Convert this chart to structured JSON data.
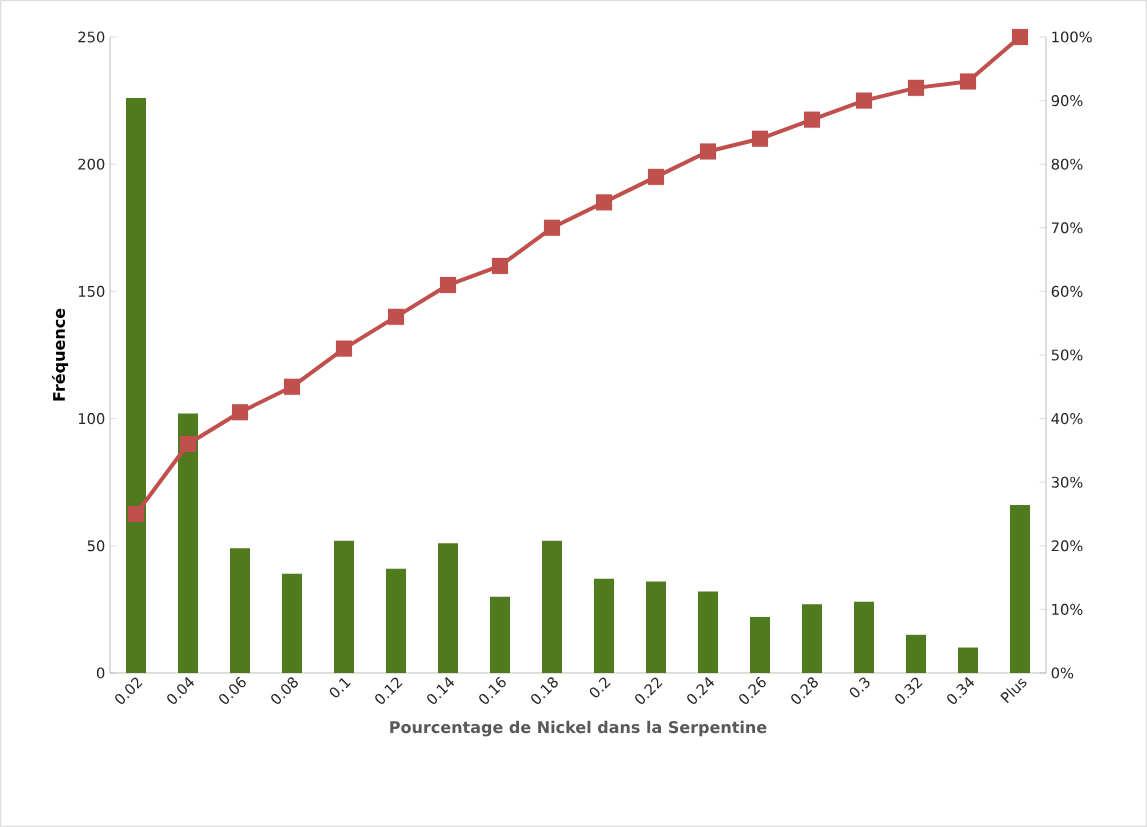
{
  "chart_data": {
    "type": "bar",
    "xlabel": "Pourcentage de Nickel dans la Serpentine",
    "ylabel": "Fréquence",
    "categories": [
      "0.02",
      "0.04",
      "0.06",
      "0.08",
      "0.1",
      "0.12",
      "0.14",
      "0.16",
      "0.18",
      "0.2",
      "0.22",
      "0.24",
      "0.26",
      "0.28",
      "0.3",
      "0.32",
      "0.34",
      "Plus"
    ],
    "series": [
      {
        "color": "#4f7a1e",
        "values": [
          226,
          102,
          49,
          39,
          52,
          41,
          51,
          30,
          52,
          37,
          36,
          32,
          22,
          27,
          28,
          15,
          10,
          66
        ]
      },
      {
        "type": "line",
        "axis": "y2",
        "color": "#c0504d",
        "marker": "square",
        "values": [
          25,
          36,
          41,
          45,
          51,
          56,
          61,
          64,
          70,
          74,
          78,
          82,
          84,
          87,
          90,
          92,
          93,
          100
        ]
      }
    ],
    "ylim": [
      0,
      250
    ],
    "yticks": [
      0,
      50,
      100,
      150,
      200,
      250
    ],
    "y2lim": [
      0,
      100
    ],
    "y2ticks": [
      {
        "value": 0,
        "label": "0%"
      },
      {
        "value": 10,
        "label": "10%"
      },
      {
        "value": 20,
        "label": "20%"
      },
      {
        "value": 30,
        "label": "30%"
      },
      {
        "value": 40,
        "label": "40%"
      },
      {
        "value": 50,
        "label": "50%"
      },
      {
        "value": 60,
        "label": "60%"
      },
      {
        "value": 70,
        "label": "70%"
      },
      {
        "value": 80,
        "label": "80%"
      },
      {
        "value": 90,
        "label": "90%"
      },
      {
        "value": 100,
        "label": "100%"
      }
    ]
  }
}
